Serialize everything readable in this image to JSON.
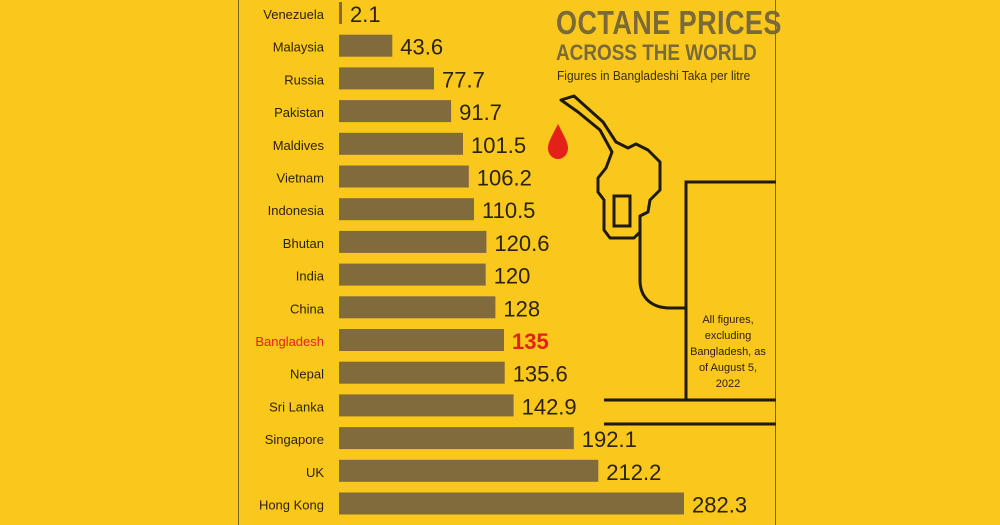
{
  "title": "OCTANE PRICES",
  "title_line2": "ACROSS THE WORLD",
  "subtitle": "Figures in Bangladeshi Taka per litre",
  "footnote": "All figures, excluding Bangladesh, as of August 5, 2022",
  "colors": {
    "background": "#FAC81C",
    "bar": "#816B3D",
    "label": "#2B2208",
    "highlight": "#E32119",
    "pump_outline": "#1E1A10"
  },
  "icons": [
    "fuel-nozzle-icon",
    "fuel-drop-icon"
  ],
  "chart_data": {
    "type": "bar",
    "orientation": "horizontal",
    "categories": [
      "Venezuela",
      "Malaysia",
      "Russia",
      "Pakistan",
      "Maldives",
      "Vietnam",
      "Indonesia",
      "Bhutan",
      "India",
      "China",
      "Bangladesh",
      "Nepal",
      "Sri Lanka",
      "Singapore",
      "UK",
      "Hong Kong"
    ],
    "values": [
      2.1,
      43.6,
      77.7,
      91.7,
      101.5,
      106.2,
      110.5,
      120.6,
      120,
      128,
      135,
      135.6,
      142.9,
      192.1,
      212.2,
      282.3
    ],
    "value_labels": [
      "2.1",
      "43.6",
      "77.7",
      "91.7",
      "101.5",
      "106.2",
      "110.5",
      "120.6",
      "120",
      "128",
      "135",
      "135.6",
      "142.9",
      "192.1",
      "212.2",
      "282.3"
    ],
    "highlight": "Bangladesh",
    "xlim": [
      0,
      300
    ],
    "grid": false,
    "legend": "none"
  }
}
